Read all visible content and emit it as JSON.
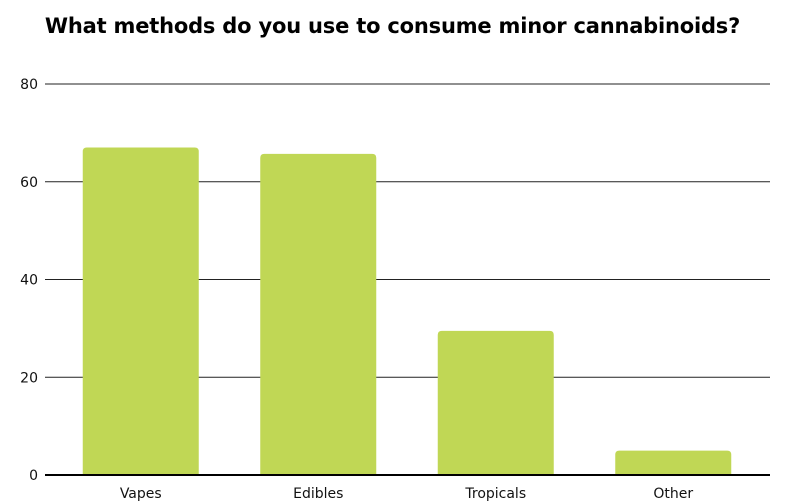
{
  "chart_data": {
    "type": "bar",
    "title": "What methods do you use to consume minor cannabinoids?",
    "xlabel": "",
    "ylabel": "",
    "categories": [
      "Vapes",
      "Edibles",
      "Tropicals",
      "Other"
    ],
    "values": [
      67,
      65.7,
      29.5,
      5
    ],
    "ylim": [
      0,
      80
    ],
    "yticks": [
      "0",
      "20",
      "40",
      "60",
      "80"
    ],
    "grid": true,
    "legend": "none",
    "colors": {
      "bar": "#c0d755",
      "grid": "#222222",
      "axis": "#000000"
    }
  }
}
